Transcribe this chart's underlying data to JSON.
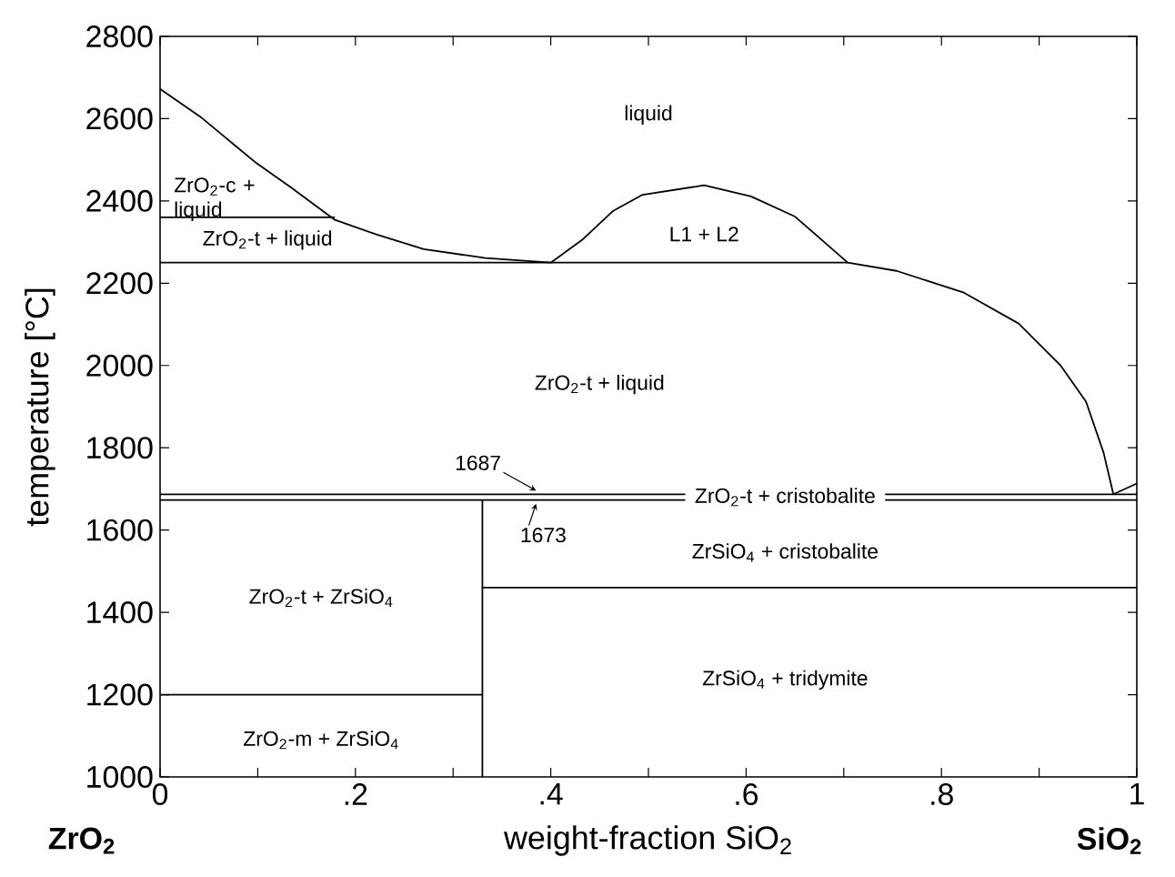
{
  "chart_data": {
    "type": "line",
    "xlabel": "weight-fraction SiO$_{2}$",
    "ylabel": "temperature [°C]",
    "xlim": [
      0,
      1
    ],
    "ylim": [
      1000,
      2800
    ],
    "xticks": [
      0,
      {
        "value": 0.1,
        "label": null
      },
      {
        "value": 0.2,
        "label": ".2"
      },
      {
        "value": 0.3,
        "label": null
      },
      {
        "value": 0.4,
        "label": ".4"
      },
      {
        "value": 0.5,
        "label": null
      },
      {
        "value": 0.6,
        "label": ".6"
      },
      {
        "value": 0.7,
        "label": null
      },
      {
        "value": 0.8,
        "label": ".8"
      },
      {
        "value": 0.9,
        "label": null
      },
      1
    ],
    "yticks": [
      1000,
      1200,
      1400,
      1600,
      1800,
      2000,
      2200,
      2400,
      2600,
      2800
    ],
    "series": [
      {
        "color": "#000000",
        "x": [
          0,
          0.041,
          0.097,
          0.134,
          0.179,
          0.222,
          0.27,
          0.333,
          0.4,
          0.432,
          0.464,
          0.494,
          0.557,
          0.605,
          0.65,
          0.68,
          0.704,
          0.754,
          0.823,
          0.879,
          0.922,
          0.948,
          0.966,
          0.976,
          1
        ],
        "values": [
          2672,
          2605,
          2495,
          2433,
          2354,
          2318,
          2283,
          2261,
          2250,
          2305,
          2376,
          2415,
          2438,
          2411,
          2362,
          2300,
          2250,
          2230,
          2177,
          2102,
          2000,
          1912,
          1788,
          1687,
          1713
        ]
      },
      {
        "color": "#000000",
        "x": [
          0,
          0.179
        ],
        "values": [
          2360,
          2360
        ]
      },
      {
        "color": "#000000",
        "x": [
          0,
          0.704
        ],
        "values": [
          2250,
          2250
        ]
      },
      {
        "color": "#000000",
        "x": [
          0.33,
          0.33
        ],
        "values": [
          1000,
          1673
        ]
      },
      {
        "color": "#000000",
        "x": [
          0,
          0.33
        ],
        "values": [
          1200,
          1200
        ]
      },
      {
        "color": "#000000",
        "x": [
          0.33,
          1
        ],
        "values": [
          1460,
          1460
        ]
      }
    ],
    "ref_lines": [
      {
        "axis": "y",
        "value": 1687,
        "label": "1687",
        "color": "#000000"
      },
      {
        "axis": "y",
        "value": 1673,
        "label": "1673",
        "color": "#000000"
      }
    ],
    "annotations": [
      "liquid",
      "ZrO$_{2}$-c + liquid",
      "ZrO$_{2}$-t + liquid",
      "L1 + L2",
      "ZrO$_{2}$-t + liquid",
      "ZrO$_{2}$-t + cristobalite",
      "ZrSiO$_{4}$ + cristobalite",
      "ZrO$_{2}$-t + ZrSiO$_{4}$",
      "ZrSiO$_{4}$ + tridymite",
      "ZrO$_{2}$-m + ZrSiO$_{4}$",
      "ZrO$_{2}$",
      "SiO$_{2}$"
    ]
  }
}
